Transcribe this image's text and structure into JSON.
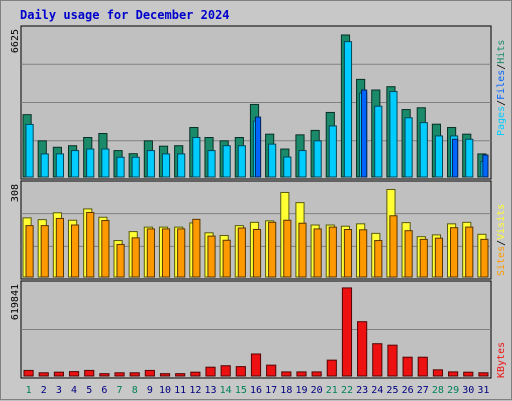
{
  "title": "Daily usage for December 2024",
  "colors": {
    "hits": "#1a8a6a",
    "files": "#00ccff",
    "pages": "#00ccff",
    "visits": "#ffff33",
    "sites": "#ff9900",
    "kbytes": "#ee1111",
    "weekend_day": "#00805a",
    "weekday": "#000080"
  },
  "legend": {
    "top": [
      "Pages",
      "/",
      "Files",
      "/",
      "Hits"
    ],
    "middle": [
      "Sites",
      "/",
      "Visits"
    ],
    "bottom": [
      "KBytes"
    ]
  },
  "chart_data": [
    {
      "type": "bar",
      "name": "hits-files-pages",
      "ymax_label": "6625",
      "ylim": [
        0,
        6625
      ],
      "categories": [
        "1",
        "2",
        "3",
        "4",
        "5",
        "6",
        "7",
        "8",
        "9",
        "10",
        "11",
        "12",
        "13",
        "14",
        "15",
        "16",
        "17",
        "18",
        "19",
        "20",
        "21",
        "22",
        "23",
        "24",
        "25",
        "26",
        "27",
        "28",
        "29",
        "30",
        "31"
      ],
      "weekend_days": [
        "1",
        "7",
        "8",
        "14",
        "15",
        "21",
        "22",
        "28",
        "29"
      ],
      "series": [
        {
          "name": "Hits",
          "values": [
            2810,
            1630,
            1340,
            1410,
            1780,
            1960,
            1190,
            1050,
            1630,
            1390,
            1410,
            2230,
            1780,
            1630,
            1780,
            3270,
            1930,
            1260,
            1900,
            2100,
            2910,
            6400,
            4400,
            3920,
            4070,
            3040,
            3120,
            2380,
            2230,
            1930,
            1040
          ]
        },
        {
          "name": "Files",
          "values": [
            2370,
            1040,
            1040,
            1190,
            1260,
            1260,
            890,
            890,
            1190,
            1040,
            1040,
            1780,
            1190,
            1410,
            1410,
            2520,
            1480,
            900,
            1190,
            1630,
            2300,
            6100,
            3780,
            3190,
            3850,
            2670,
            2450,
            1850,
            1850,
            1700,
            700
          ]
        },
        {
          "name": "Pages",
          "values": [
            0,
            0,
            0,
            0,
            0,
            0,
            0,
            0,
            0,
            0,
            0,
            0,
            0,
            0,
            0,
            2700,
            0,
            0,
            0,
            0,
            0,
            0,
            3920,
            0,
            0,
            0,
            0,
            0,
            1700,
            0,
            990
          ]
        }
      ]
    },
    {
      "type": "bar",
      "name": "visits-sites",
      "ymax_label": "308",
      "ylim": [
        0,
        308
      ],
      "categories": [
        "1",
        "2",
        "3",
        "4",
        "5",
        "6",
        "7",
        "8",
        "9",
        "10",
        "11",
        "12",
        "13",
        "14",
        "15",
        "16",
        "17",
        "18",
        "19",
        "20",
        "21",
        "22",
        "23",
        "24",
        "25",
        "26",
        "27",
        "28",
        "29",
        "30",
        "31"
      ],
      "series": [
        {
          "name": "Visits",
          "values": [
            198,
            192,
            215,
            190,
            228,
            200,
            122,
            152,
            167,
            167,
            167,
            181,
            148,
            139,
            172,
            183,
            188,
            283,
            249,
            174,
            174,
            170,
            178,
            146,
            293,
            182,
            135,
            141,
            178,
            183,
            143
          ]
        },
        {
          "name": "Sites",
          "values": [
            172,
            172,
            196,
            174,
            216,
            189,
            109,
            131,
            161,
            161,
            161,
            193,
            137,
            123,
            164,
            159,
            183,
            190,
            180,
            161,
            167,
            159,
            158,
            122,
            205,
            155,
            126,
            130,
            165,
            167,
            126
          ]
        }
      ]
    },
    {
      "type": "bar",
      "name": "kbytes",
      "ymax_label": "619841",
      "ylim": [
        0,
        619841
      ],
      "categories": [
        "1",
        "2",
        "3",
        "4",
        "5",
        "6",
        "7",
        "8",
        "9",
        "10",
        "11",
        "12",
        "13",
        "14",
        "15",
        "16",
        "17",
        "18",
        "19",
        "20",
        "21",
        "22",
        "23",
        "24",
        "25",
        "26",
        "27",
        "28",
        "29",
        "30",
        "31"
      ],
      "series": [
        {
          "name": "KBytes",
          "values": [
            38000,
            22000,
            26000,
            30000,
            38000,
            16000,
            22000,
            22000,
            38000,
            16000,
            16000,
            26000,
            60000,
            70000,
            64000,
            150000,
            74000,
            28000,
            28000,
            28000,
            108000,
            600000,
            370000,
            220000,
            210000,
            128000,
            128000,
            42000,
            28000,
            26000,
            22000
          ]
        }
      ]
    }
  ]
}
